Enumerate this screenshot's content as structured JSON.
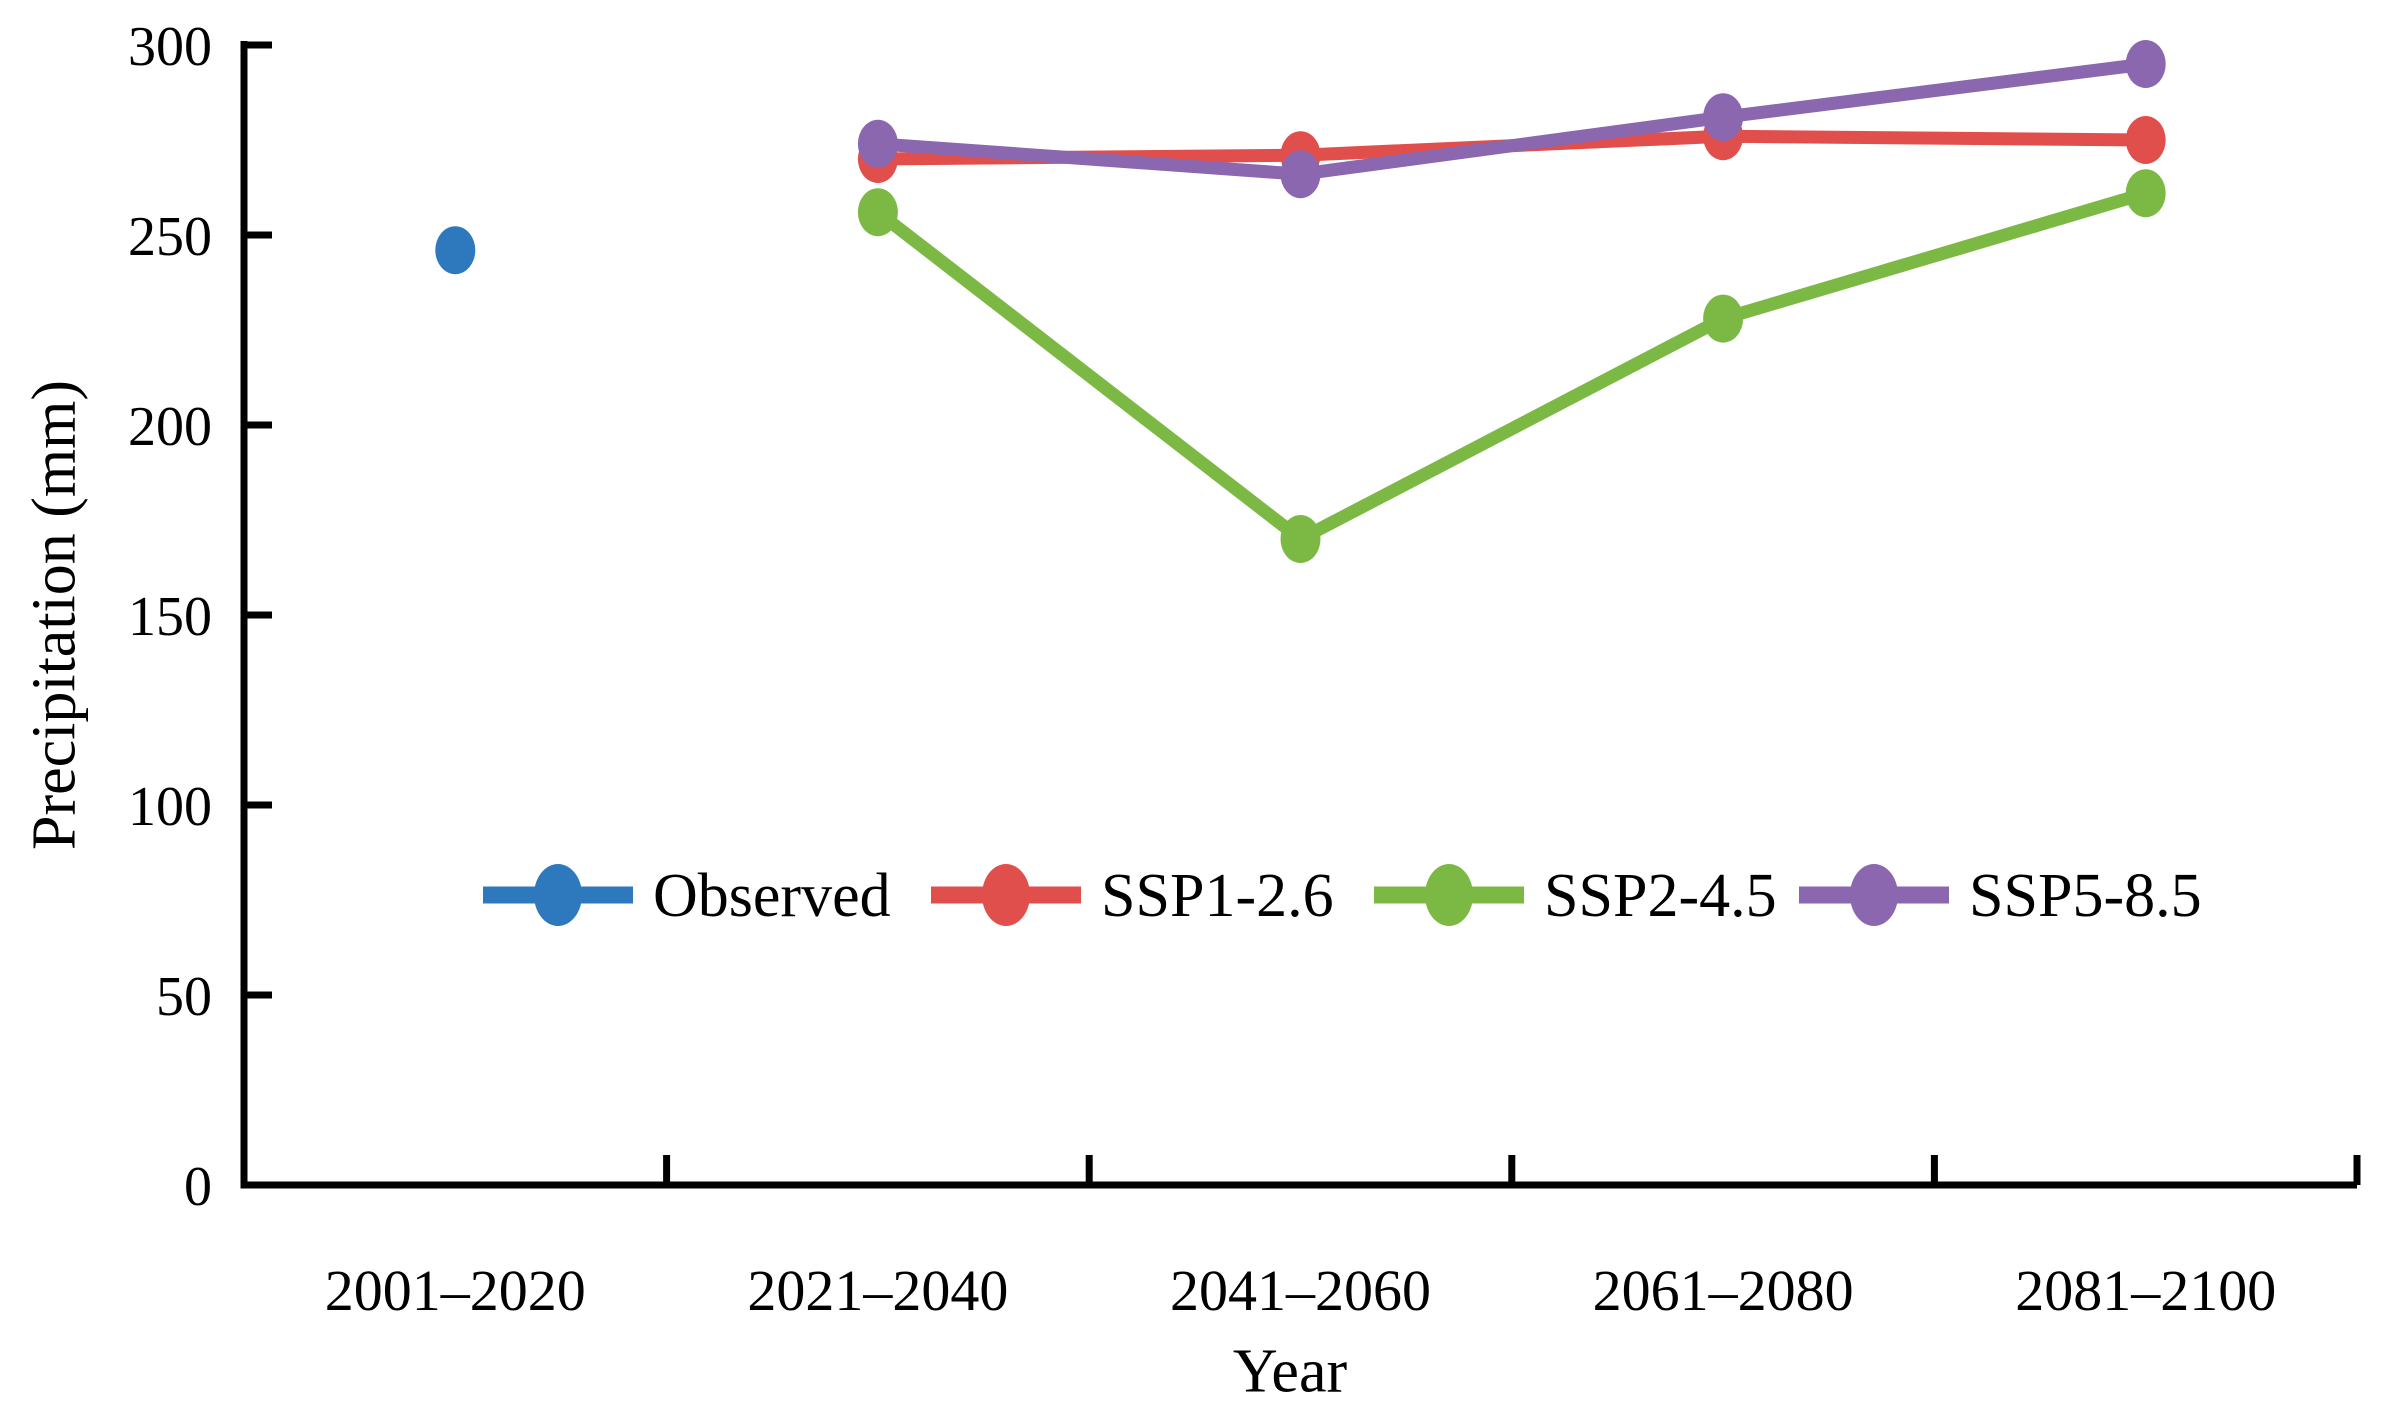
{
  "figure": {
    "background": "#ffffff"
  },
  "chart_data": {
    "type": "line",
    "title": "",
    "xlabel": "Year",
    "ylabel": "Precipitation (mm)",
    "categories": [
      "2001–2020",
      "2021–2040",
      "2041–2060",
      "2061–2080",
      "2081–2100"
    ],
    "series": [
      {
        "name": "Observed",
        "color": "#2E79BD",
        "values": [
          246,
          null,
          null,
          null,
          null
        ]
      },
      {
        "name": "SSP1-2.6",
        "color": "#E14F4D",
        "values": [
          null,
          270,
          271,
          276,
          275
        ]
      },
      {
        "name": "SSP2-4.5",
        "color": "#7CB944",
        "values": [
          null,
          256,
          170,
          228,
          261
        ]
      },
      {
        "name": "SSP5-8.5",
        "color": "#8A67AE",
        "values": [
          null,
          274,
          266,
          281,
          295
        ]
      }
    ],
    "ylim": [
      0,
      300
    ],
    "yticks": [
      0,
      50,
      100,
      150,
      200,
      250,
      300
    ],
    "grid": false,
    "legend_position": "inside-center",
    "axis_color": "#000000",
    "text_color": "#000000"
  }
}
